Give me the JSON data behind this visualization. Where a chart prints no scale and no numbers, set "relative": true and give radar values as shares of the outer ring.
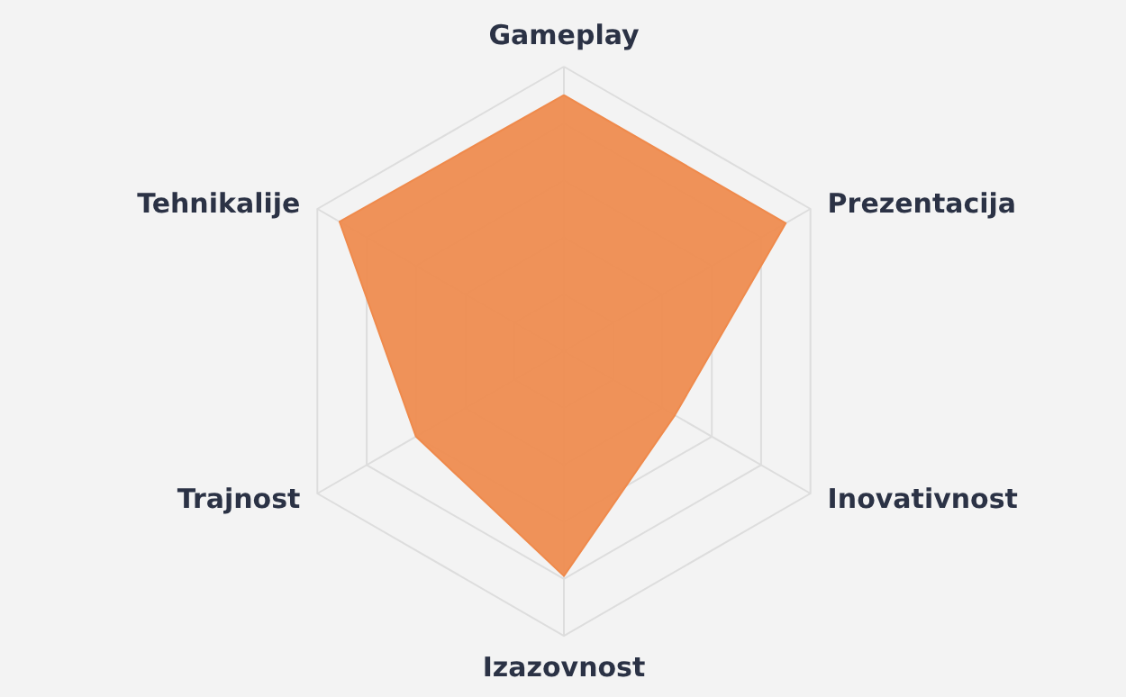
{
  "chart_data": {
    "type": "radar",
    "relative": true,
    "grid": true,
    "categories": [
      "Gameplay",
      "Prezentacija",
      "Inovativnost",
      "Izazovnost",
      "Trajnost",
      "Tehnikalije"
    ],
    "series": [
      {
        "color": "#ef8a4c",
        "values": [
          0.9,
          0.9,
          0.45,
          0.79,
          0.6,
          0.91
        ]
      }
    ]
  }
}
